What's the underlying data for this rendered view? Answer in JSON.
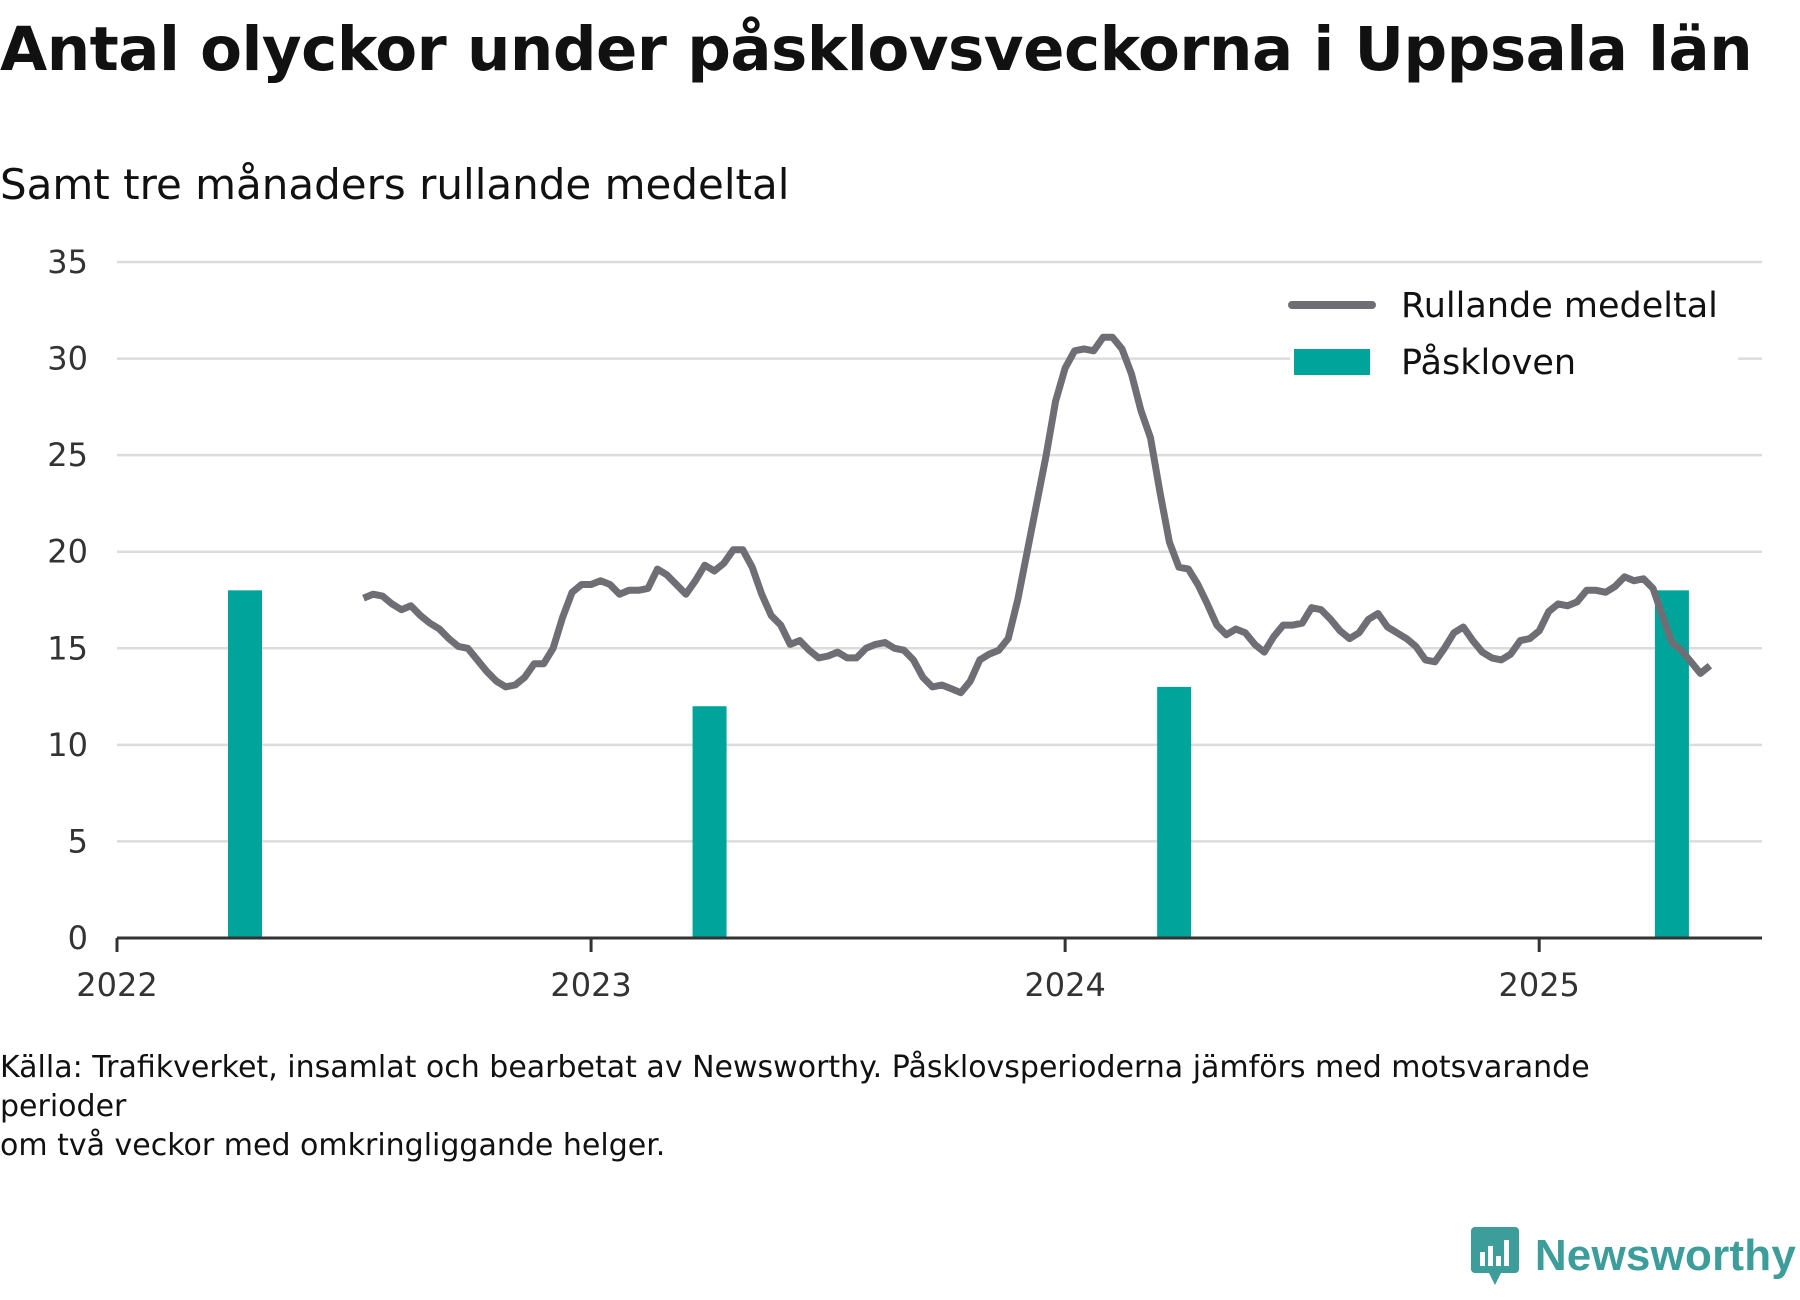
{
  "title": "Antal olyckor under påsklovsveckorna i Uppsala län",
  "subtitle": "Samt tre månaders rullande medeltal",
  "source_line1": "Källa: Trafikverket, insamlat och bearbetat av Newsworthy. Påsklovsperioderna jämförs med motsvarande perioder",
  "source_line2": "om två veckor med omkringliggande helger.",
  "brand": "Newsworthy",
  "brand_color": "#3d9d9b",
  "logo_icon": "newsworthy-chart-bubble-icon",
  "colors": {
    "line": "#6e6e74",
    "bar": "#00a49a",
    "grid": "#dcdcdc",
    "axis": "#333333"
  },
  "chart_data": {
    "type": "bar+line",
    "ylim": [
      0,
      35
    ],
    "yticks": [
      0,
      5,
      10,
      15,
      20,
      25,
      30,
      35
    ],
    "xlim": [
      2022.0,
      2025.47
    ],
    "xticks": [
      2022,
      2023,
      2024,
      2025
    ],
    "xtick_labels": [
      "2022",
      "2023",
      "2024",
      "2025"
    ],
    "grid": true,
    "legend_position": "top-right",
    "legend": [
      "Rullande medeltal",
      "Påskloven"
    ],
    "bars": {
      "name": "Påskloven",
      "x": [
        2022.27,
        2023.25,
        2024.23,
        2025.28
      ],
      "values": [
        18,
        12,
        13,
        18
      ]
    },
    "line": {
      "name": "Rullande medeltal",
      "points": [
        [
          2022.52,
          17.6
        ],
        [
          2022.54,
          17.8
        ],
        [
          2022.56,
          17.7
        ],
        [
          2022.58,
          17.3
        ],
        [
          2022.6,
          17.0
        ],
        [
          2022.62,
          17.2
        ],
        [
          2022.64,
          16.7
        ],
        [
          2022.66,
          16.3
        ],
        [
          2022.68,
          16.0
        ],
        [
          2022.7,
          15.5
        ],
        [
          2022.72,
          15.1
        ],
        [
          2022.74,
          15.0
        ],
        [
          2022.76,
          14.4
        ],
        [
          2022.78,
          13.8
        ],
        [
          2022.8,
          13.3
        ],
        [
          2022.82,
          13.0
        ],
        [
          2022.84,
          13.1
        ],
        [
          2022.86,
          13.5
        ],
        [
          2022.88,
          14.2
        ],
        [
          2022.9,
          14.2
        ],
        [
          2022.92,
          15.0
        ],
        [
          2022.94,
          16.6
        ],
        [
          2022.96,
          17.9
        ],
        [
          2022.98,
          18.3
        ],
        [
          2023.0,
          18.3
        ],
        [
          2023.02,
          18.5
        ],
        [
          2023.04,
          18.3
        ],
        [
          2023.06,
          17.8
        ],
        [
          2023.08,
          18.0
        ],
        [
          2023.1,
          18.0
        ],
        [
          2023.12,
          18.1
        ],
        [
          2023.14,
          19.1
        ],
        [
          2023.16,
          18.8
        ],
        [
          2023.18,
          18.3
        ],
        [
          2023.2,
          17.8
        ],
        [
          2023.22,
          18.5
        ],
        [
          2023.24,
          19.3
        ],
        [
          2023.26,
          19.0
        ],
        [
          2023.28,
          19.4
        ],
        [
          2023.3,
          20.1
        ],
        [
          2023.32,
          20.1
        ],
        [
          2023.34,
          19.2
        ],
        [
          2023.36,
          17.8
        ],
        [
          2023.38,
          16.7
        ],
        [
          2023.4,
          16.2
        ],
        [
          2023.42,
          15.2
        ],
        [
          2023.44,
          15.4
        ],
        [
          2023.46,
          14.9
        ],
        [
          2023.48,
          14.5
        ],
        [
          2023.5,
          14.6
        ],
        [
          2023.52,
          14.8
        ],
        [
          2023.54,
          14.5
        ],
        [
          2023.56,
          14.5
        ],
        [
          2023.58,
          15.0
        ],
        [
          2023.6,
          15.2
        ],
        [
          2023.62,
          15.3
        ],
        [
          2023.64,
          15.0
        ],
        [
          2023.66,
          14.9
        ],
        [
          2023.68,
          14.4
        ],
        [
          2023.7,
          13.5
        ],
        [
          2023.72,
          13.0
        ],
        [
          2023.74,
          13.1
        ],
        [
          2023.76,
          12.9
        ],
        [
          2023.78,
          12.7
        ],
        [
          2023.8,
          13.3
        ],
        [
          2023.82,
          14.4
        ],
        [
          2023.84,
          14.7
        ],
        [
          2023.86,
          14.9
        ],
        [
          2023.88,
          15.5
        ],
        [
          2023.9,
          17.5
        ],
        [
          2023.92,
          20.0
        ],
        [
          2023.94,
          22.5
        ],
        [
          2023.96,
          25.0
        ],
        [
          2023.98,
          27.8
        ],
        [
          2024.0,
          29.5
        ],
        [
          2024.02,
          30.4
        ],
        [
          2024.04,
          30.5
        ],
        [
          2024.06,
          30.4
        ],
        [
          2024.08,
          31.1
        ],
        [
          2024.1,
          31.1
        ],
        [
          2024.12,
          30.5
        ],
        [
          2024.14,
          29.2
        ],
        [
          2024.16,
          27.3
        ],
        [
          2024.18,
          25.9
        ],
        [
          2024.2,
          23.1
        ],
        [
          2024.22,
          20.5
        ],
        [
          2024.24,
          19.2
        ],
        [
          2024.26,
          19.1
        ],
        [
          2024.28,
          18.3
        ],
        [
          2024.3,
          17.3
        ],
        [
          2024.32,
          16.2
        ],
        [
          2024.34,
          15.7
        ],
        [
          2024.36,
          16.0
        ],
        [
          2024.38,
          15.8
        ],
        [
          2024.4,
          15.2
        ],
        [
          2024.42,
          14.8
        ],
        [
          2024.44,
          15.6
        ],
        [
          2024.46,
          16.2
        ],
        [
          2024.48,
          16.2
        ],
        [
          2024.5,
          16.3
        ],
        [
          2024.52,
          17.1
        ],
        [
          2024.54,
          17.0
        ],
        [
          2024.56,
          16.5
        ],
        [
          2024.58,
          15.9
        ],
        [
          2024.6,
          15.5
        ],
        [
          2024.62,
          15.8
        ],
        [
          2024.64,
          16.5
        ],
        [
          2024.66,
          16.8
        ],
        [
          2024.68,
          16.1
        ],
        [
          2024.7,
          15.8
        ],
        [
          2024.72,
          15.5
        ],
        [
          2024.74,
          15.1
        ],
        [
          2024.76,
          14.4
        ],
        [
          2024.78,
          14.3
        ],
        [
          2024.8,
          15.0
        ],
        [
          2024.82,
          15.8
        ],
        [
          2024.84,
          16.1
        ],
        [
          2024.86,
          15.4
        ],
        [
          2024.88,
          14.8
        ],
        [
          2024.9,
          14.5
        ],
        [
          2024.92,
          14.4
        ],
        [
          2024.94,
          14.7
        ],
        [
          2024.96,
          15.4
        ],
        [
          2024.98,
          15.5
        ],
        [
          2025.0,
          15.9
        ],
        [
          2025.02,
          16.9
        ],
        [
          2025.04,
          17.3
        ],
        [
          2025.06,
          17.2
        ],
        [
          2025.08,
          17.4
        ],
        [
          2025.1,
          18.0
        ],
        [
          2025.12,
          18.0
        ],
        [
          2025.14,
          17.9
        ],
        [
          2025.16,
          18.2
        ],
        [
          2025.18,
          18.7
        ],
        [
          2025.2,
          18.5
        ],
        [
          2025.22,
          18.6
        ],
        [
          2025.24,
          18.1
        ],
        [
          2025.26,
          16.7
        ],
        [
          2025.28,
          15.3
        ],
        [
          2025.3,
          14.9
        ],
        [
          2025.32,
          14.3
        ],
        [
          2025.34,
          13.7
        ],
        [
          2025.36,
          14.1
        ]
      ]
    }
  }
}
